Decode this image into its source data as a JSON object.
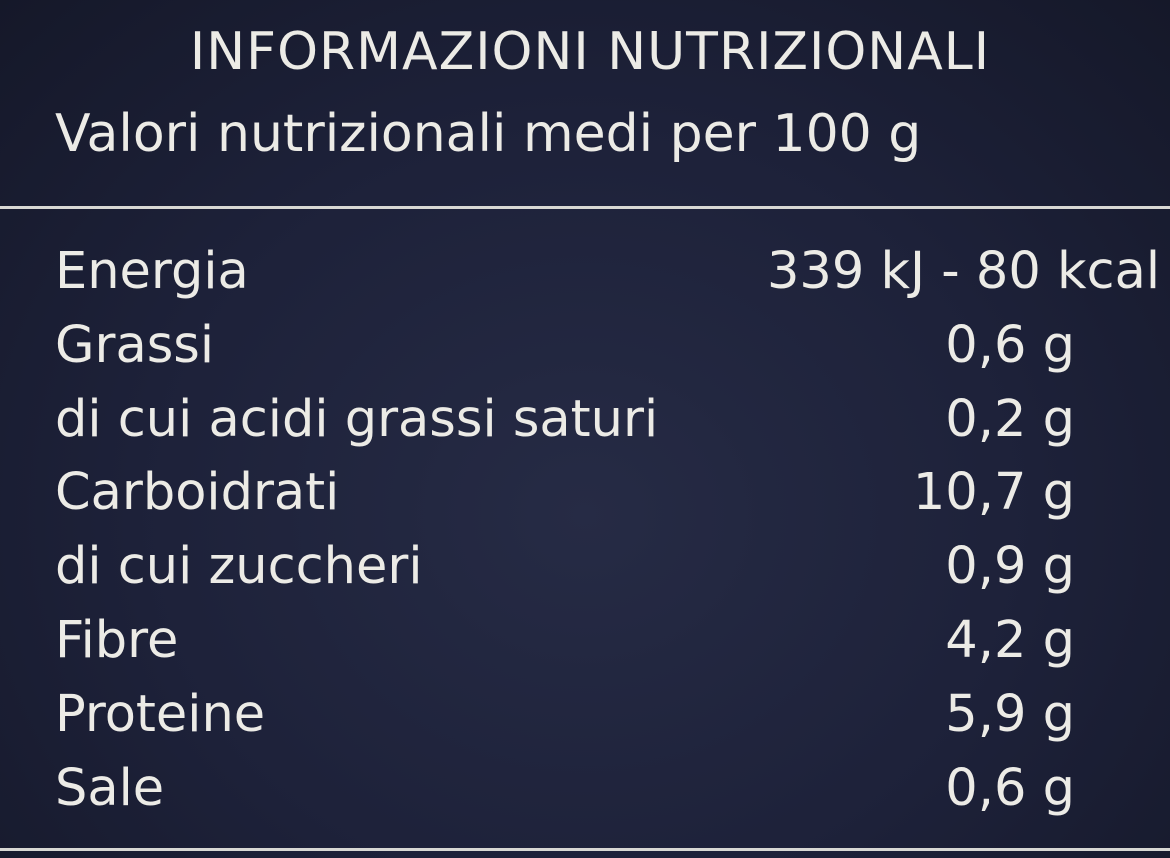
{
  "header": {
    "title": "INFORMAZIONI NUTRIZIONALI",
    "subtitle": "Valori nutrizionali medi per 100 g"
  },
  "rows": [
    {
      "label": "Energia",
      "value": "339 kJ - 80 kcal"
    },
    {
      "label": "Grassi",
      "value": "0,6 g"
    },
    {
      "label": "di cui acidi grassi saturi",
      "value": "0,2 g"
    },
    {
      "label": "Carboidrati",
      "value": "10,7 g"
    },
    {
      "label": "di cui zuccheri",
      "value": "0,9 g"
    },
    {
      "label": "Fibre",
      "value": "4,2 g"
    },
    {
      "label": "Proteine",
      "value": "5,9 g"
    },
    {
      "label": "Sale",
      "value": "0,6 g"
    }
  ],
  "colors": {
    "background": "#1d2139",
    "text": "#ecebe6"
  }
}
